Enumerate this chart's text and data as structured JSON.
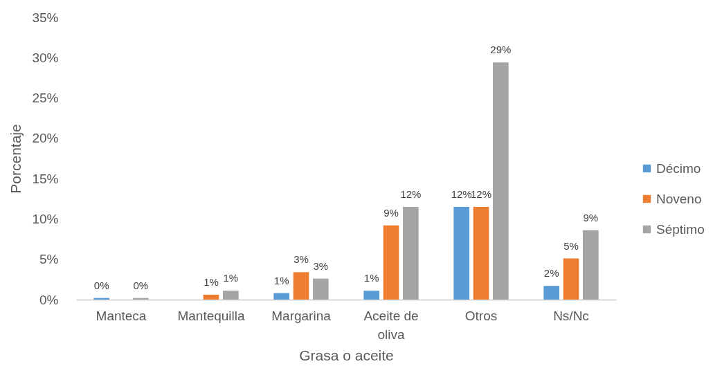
{
  "chart_data": {
    "type": "bar",
    "xlabel": "Grasa o aceite",
    "ylabel": "Porcentaje",
    "categories": [
      "Manteca",
      "Mantequilla",
      "Margarina",
      "Aceite de oliva",
      "Otros",
      "Ns/Nc"
    ],
    "series": [
      {
        "name": "Décimo",
        "color": "#5b9bd5",
        "values": [
          0.2,
          null,
          0.8,
          1.1,
          11.5,
          1.7
        ],
        "value_labels": [
          "0%",
          null,
          "1%",
          "1%",
          "12%",
          "2%"
        ]
      },
      {
        "name": "Noveno",
        "color": "#ed7d31",
        "values": [
          null,
          0.6,
          3.4,
          9.2,
          11.5,
          5.1
        ],
        "value_labels": [
          null,
          "1%",
          "3%",
          "9%",
          "12%",
          "5%"
        ]
      },
      {
        "name": "Séptimo",
        "color": "#a5a5a5",
        "values": [
          0.2,
          1.1,
          2.6,
          11.5,
          29.4,
          8.6
        ],
        "value_labels": [
          "0%",
          "1%",
          "3%",
          "12%",
          "29%",
          "9%"
        ]
      }
    ],
    "ylim": [
      0,
      35
    ],
    "yticks": [
      {
        "value": 0,
        "label": "0%"
      },
      {
        "value": 5,
        "label": "5%"
      },
      {
        "value": 10,
        "label": "10%"
      },
      {
        "value": 15,
        "label": "15%"
      },
      {
        "value": 20,
        "label": "20%"
      },
      {
        "value": 25,
        "label": "25%"
      },
      {
        "value": 30,
        "label": "30%"
      },
      {
        "value": 35,
        "label": "35%"
      }
    ],
    "legend": "right",
    "grid": false
  }
}
